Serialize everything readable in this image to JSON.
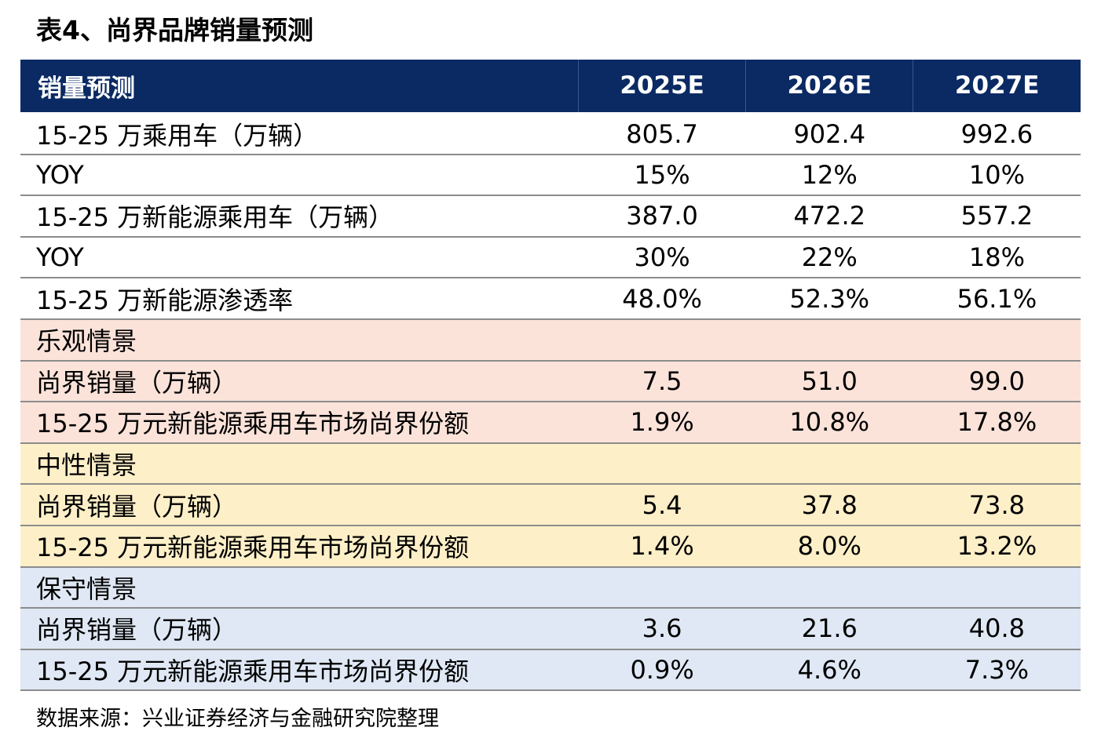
{
  "title": "表4、尚界品牌销量预测",
  "header": {
    "label": "销量预测",
    "years": [
      "2025E",
      "2026E",
      "2027E"
    ]
  },
  "rows": [
    {
      "label": "15-25 万乘用车（万辆）",
      "values": [
        "805.7",
        "902.4",
        "992.6"
      ],
      "group": "general"
    },
    {
      "label": "YOY",
      "values": [
        "15%",
        "12%",
        "10%"
      ],
      "group": "general"
    },
    {
      "label": "15-25 万新能源乘用车（万辆）",
      "values": [
        "387.0",
        "472.2",
        "557.2"
      ],
      "group": "general"
    },
    {
      "label": "YOY",
      "values": [
        "30%",
        "22%",
        "18%"
      ],
      "group": "general"
    },
    {
      "label": "15-25 万新能源渗透率",
      "values": [
        "48.0%",
        "52.3%",
        "56.1%"
      ],
      "group": "general"
    },
    {
      "label": "乐观情景",
      "values": [
        "",
        "",
        ""
      ],
      "group": "optimistic"
    },
    {
      "label": "尚界销量（万辆）",
      "values": [
        "7.5",
        "51.0",
        "99.0"
      ],
      "group": "optimistic"
    },
    {
      "label": "15-25 万元新能源乘用车市场尚界份额",
      "values": [
        "1.9%",
        "10.8%",
        "17.8%"
      ],
      "group": "optimistic"
    },
    {
      "label": "中性情景",
      "values": [
        "",
        "",
        ""
      ],
      "group": "neutral"
    },
    {
      "label": "尚界销量（万辆）",
      "values": [
        "5.4",
        "37.8",
        "73.8"
      ],
      "group": "neutral"
    },
    {
      "label": "15-25 万元新能源乘用车市场尚界份额",
      "values": [
        "1.4%",
        "8.0%",
        "13.2%"
      ],
      "group": "neutral"
    },
    {
      "label": "保守情景",
      "values": [
        "",
        "",
        ""
      ],
      "group": "conservative"
    },
    {
      "label": "尚界销量（万辆）",
      "values": [
        "3.6",
        "21.6",
        "40.8"
      ],
      "group": "conservative"
    },
    {
      "label": "15-25 万元新能源乘用车市场尚界份额",
      "values": [
        "0.9%",
        "4.6%",
        "7.3%"
      ],
      "group": "conservative"
    }
  ],
  "source": "数据来源：兴业证券经济与金融研究院整理",
  "colors": {
    "header_bg": "#0b2a63",
    "optimistic_bg": "#fbe3da",
    "neutral_bg": "#fdefc8",
    "conservative_bg": "#dfe8f4"
  },
  "chart_data": {
    "type": "table",
    "title": "表4、尚界品牌销量预测",
    "columns": [
      "销量预测",
      "2025E",
      "2026E",
      "2027E"
    ],
    "rows": [
      [
        "15-25 万乘用车（万辆）",
        "805.7",
        "902.4",
        "992.6"
      ],
      [
        "YOY",
        "15%",
        "12%",
        "10%"
      ],
      [
        "15-25 万新能源乘用车（万辆）",
        "387.0",
        "472.2",
        "557.2"
      ],
      [
        "YOY",
        "30%",
        "22%",
        "18%"
      ],
      [
        "15-25 万新能源渗透率",
        "48.0%",
        "52.3%",
        "56.1%"
      ],
      [
        "乐观情景",
        "",
        "",
        ""
      ],
      [
        "尚界销量（万辆）",
        "7.5",
        "51.0",
        "99.0"
      ],
      [
        "15-25 万元新能源乘用车市场尚界份额",
        "1.9%",
        "10.8%",
        "17.8%"
      ],
      [
        "中性情景",
        "",
        "",
        ""
      ],
      [
        "尚界销量（万辆）",
        "5.4",
        "37.8",
        "73.8"
      ],
      [
        "15-25 万元新能源乘用车市场尚界份额",
        "1.4%",
        "8.0%",
        "13.2%"
      ],
      [
        "保守情景",
        "",
        "",
        ""
      ],
      [
        "尚界销量（万辆）",
        "3.6",
        "21.6",
        "40.8"
      ],
      [
        "15-25 万元新能源乘用车市场尚界份额",
        "0.9%",
        "4.6%",
        "7.3%"
      ]
    ]
  }
}
